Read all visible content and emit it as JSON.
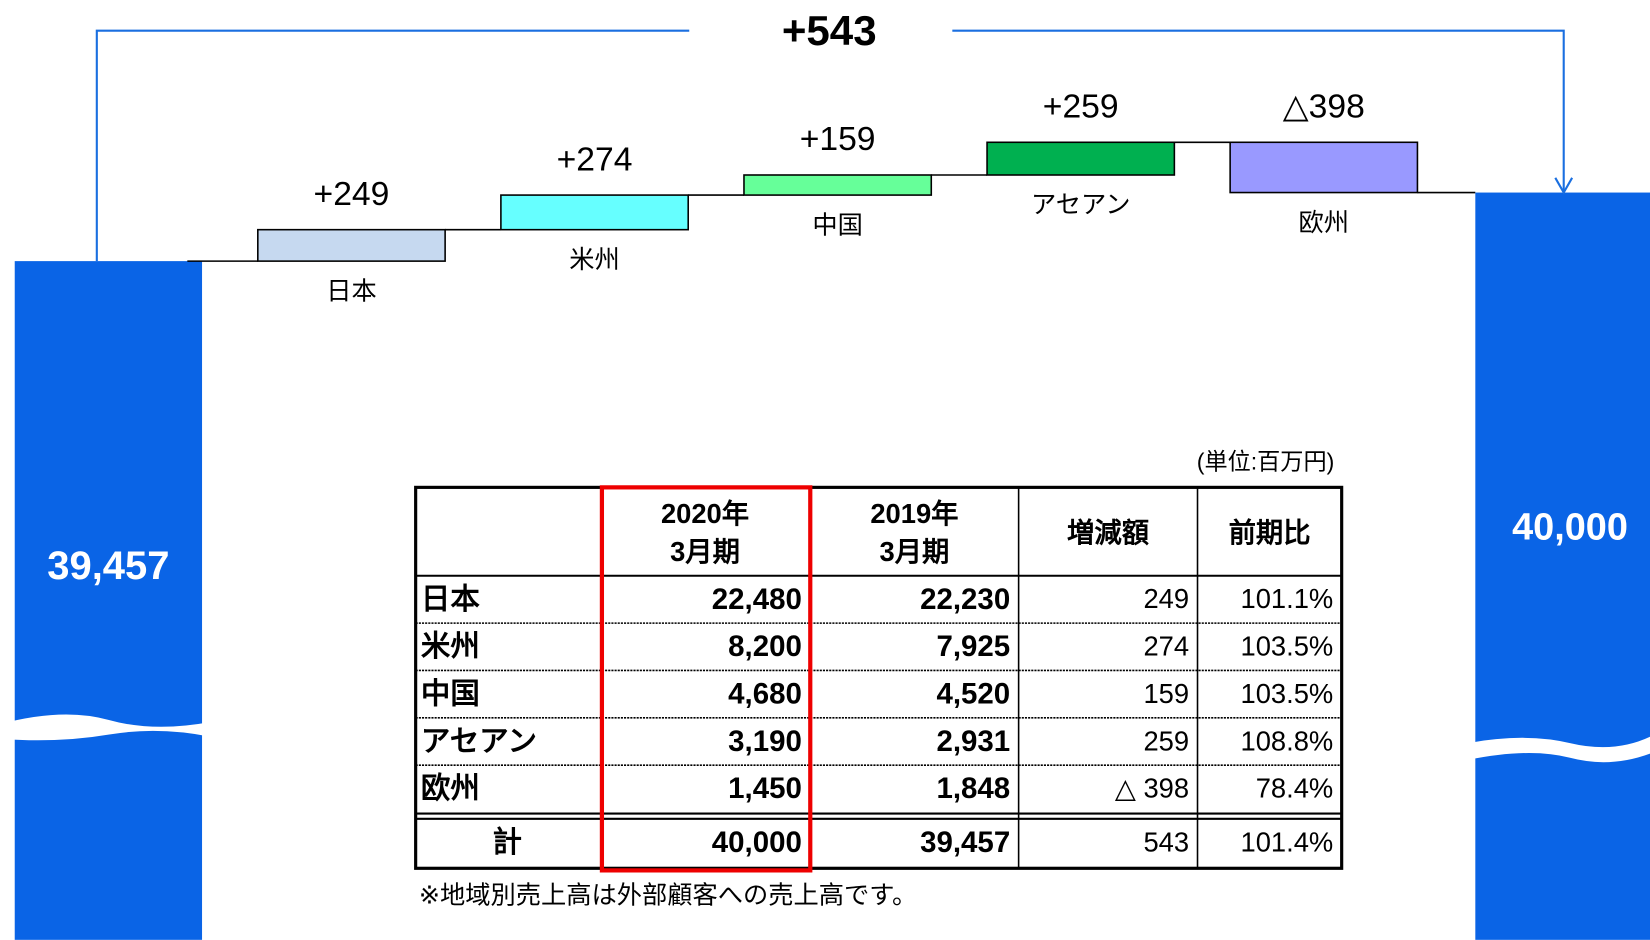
{
  "chart_data": {
    "type": "waterfall",
    "total_change": 543,
    "total_change_label": "+543",
    "start_value": 39457,
    "start_label": "39,457",
    "end_value": 40000,
    "end_label": "40,000",
    "categories": [
      "日本",
      "米州",
      "中国",
      "アセアン",
      "欧州"
    ],
    "values": [
      249,
      274,
      159,
      259,
      -398
    ],
    "value_labels": [
      "+249",
      "+274",
      "+159",
      "+259",
      "△398"
    ],
    "colors": [
      "#c6d9f0",
      "#66ffff",
      "#66ff99",
      "#00b050",
      "#9999ff"
    ],
    "total_color": "#0a64e6"
  },
  "table": {
    "unit": "(単位:百万円)",
    "header": [
      [
        "2020年",
        "3月期"
      ],
      [
        "2019年",
        "3月期"
      ],
      [
        "増減額"
      ],
      [
        "前期比"
      ]
    ],
    "rows": [
      [
        "日本",
        "22,480",
        "22,230",
        "249",
        "101.1%"
      ],
      [
        "米州",
        "8,200",
        "7,925",
        "274",
        "103.5%"
      ],
      [
        "中国",
        "4,680",
        "4,520",
        "159",
        "103.5%"
      ],
      [
        "アセアン",
        "3,190",
        "2,931",
        "259",
        "108.8%"
      ],
      [
        "欧州",
        "1,450",
        "1,848",
        "△ 398",
        "78.4%"
      ]
    ],
    "total": [
      "計",
      "40,000",
      "39,457",
      "543",
      "101.4%"
    ],
    "note": "※地域別売上高は外部顧客への売上高です。"
  }
}
